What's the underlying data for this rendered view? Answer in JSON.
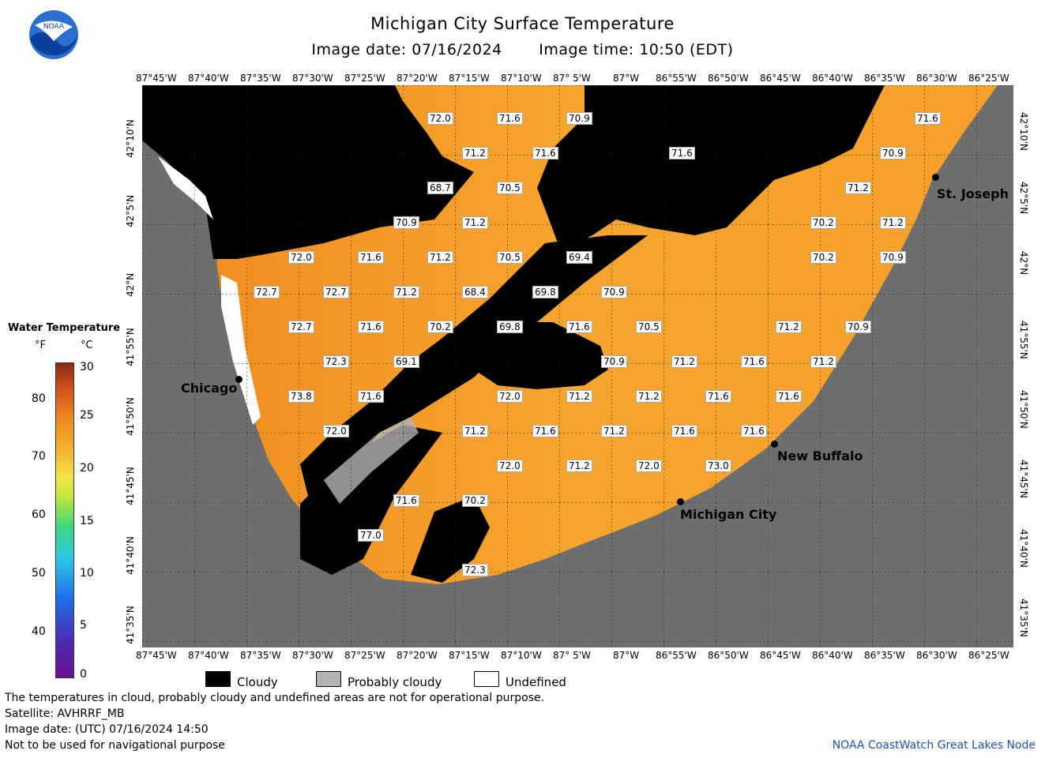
{
  "header": {
    "title": "Michigan City Surface Temperature",
    "image_date": "Image date: 07/16/2024",
    "image_time": "Image time: 10:50 (EDT)",
    "logo_text": "NOAA"
  },
  "axes": {
    "lon_labels": [
      "87°45'W",
      "87°40'W",
      "87°35'W",
      "87°30'W",
      "87°25'W",
      "87°20'W",
      "87°15'W",
      "87°10'W",
      "87° 5'W",
      "87°W",
      "86°55'W",
      "86°50'W",
      "86°45'W",
      "86°40'W",
      "86°35'W",
      "86°30'W",
      "86°25'W"
    ],
    "lat_labels": [
      "42°10'N",
      "42°5'N",
      "42°N",
      "41°55'N",
      "41°50'N",
      "41°45'N",
      "41°40'N",
      "41°35'N"
    ]
  },
  "legend": {
    "title": "Water Temperature",
    "unit_f": "°F",
    "unit_c": "°C",
    "f_ticks": [
      "80",
      "70",
      "60",
      "50",
      "40"
    ],
    "c_ticks": [
      "30",
      "25",
      "20",
      "15",
      "10",
      "5",
      "0"
    ],
    "categories": [
      {
        "label": "Cloudy",
        "color": "#000000"
      },
      {
        "label": "Probably cloudy",
        "color": "#b4b4b4"
      },
      {
        "label": "Undefined",
        "color": "#ffffff"
      }
    ]
  },
  "places": [
    {
      "name": "Chicago"
    },
    {
      "name": "St. Joseph"
    },
    {
      "name": "New Buffalo"
    },
    {
      "name": "Michigan City"
    }
  ],
  "temperature_labels": [
    "72.0",
    "71.6",
    "70.9",
    "71.6",
    "71.2",
    "71.6",
    "68.7",
    "70.5",
    "70.9",
    "71.2",
    "71.2",
    "70.9",
    "71.6",
    "72.0",
    "71.6",
    "71.2",
    "70.5",
    "69.4",
    "70.2",
    "71.2",
    "72.7",
    "72.7",
    "71.2",
    "68.4",
    "69.8",
    "70.9",
    "70.2",
    "70.9",
    "72.7",
    "71.6",
    "70.2",
    "69.8",
    "71.6",
    "70.5",
    "71.2",
    "70.9",
    "72.3",
    "69.1",
    "70.9",
    "71.2",
    "71.6",
    "71.2",
    "73.8",
    "71.6",
    "72.0",
    "71.2",
    "71.2",
    "71.6",
    "71.6",
    "72.0",
    "71.2",
    "71.6",
    "71.2",
    "71.6",
    "71.6",
    "72.0",
    "71.2",
    "72.0",
    "73.0",
    "71.6",
    "70.2",
    "77.0",
    "72.3"
  ],
  "footer": {
    "note": "The temperatures in cloud, probably cloudy and undefined areas are not for operational purpose.",
    "satellite": "Satellite: AVHRRF_MB",
    "utc_date": "Image date: (UTC) 07/16/2024  14:50",
    "nav_warning": "Not to be used for navigational purpose",
    "credit": "NOAA CoastWatch Great Lakes Node"
  },
  "colors": {
    "land": "#6e6e6e",
    "water_warm": "#f7a128",
    "cloud": "#000000",
    "probably_cloudy": "#b4b4b4"
  }
}
